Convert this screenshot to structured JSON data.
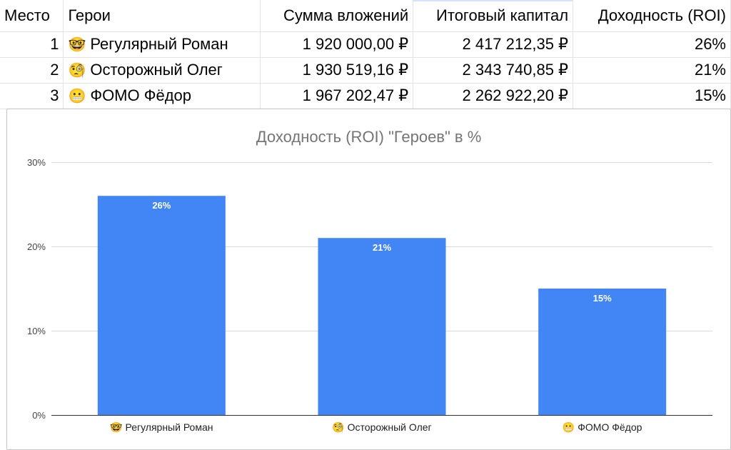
{
  "table": {
    "headers": [
      "Место",
      "Герои",
      "Сумма вложений",
      "Итоговый капитал",
      "Доходность (ROI)"
    ],
    "rows": [
      {
        "place": "1",
        "emoji": "🤓",
        "hero": "Регулярный Роман",
        "invest": "1 920 000,00 ₽",
        "capital": "2 417 212,35 ₽",
        "roi": "26%"
      },
      {
        "place": "2",
        "emoji": "🧐",
        "hero": "Осторожный Олег",
        "invest": "1 930 519,16 ₽",
        "capital": "2 343 740,85 ₽",
        "roi": "21%"
      },
      {
        "place": "3",
        "emoji": "😬",
        "hero": "ФОМО Фёдор",
        "invest": "1 967 202,47 ₽",
        "capital": "2 262 922,20 ₽",
        "roi": "15%"
      }
    ]
  },
  "chart_data": {
    "type": "bar",
    "title": "Доходность (ROI) \"Героев\" в %",
    "categories": [
      "🤓 Регулярный Роман",
      "🧐 Осторожный Олег",
      "😬 ФОМО Фёдор"
    ],
    "values": [
      26,
      21,
      15
    ],
    "data_labels": [
      "26%",
      "21%",
      "15%"
    ],
    "y_ticks": [
      "0%",
      "10%",
      "20%",
      "30%"
    ],
    "ylim": [
      0,
      30
    ],
    "grid": true,
    "bar_color": "#4285f4",
    "xlabel": "",
    "ylabel": ""
  }
}
